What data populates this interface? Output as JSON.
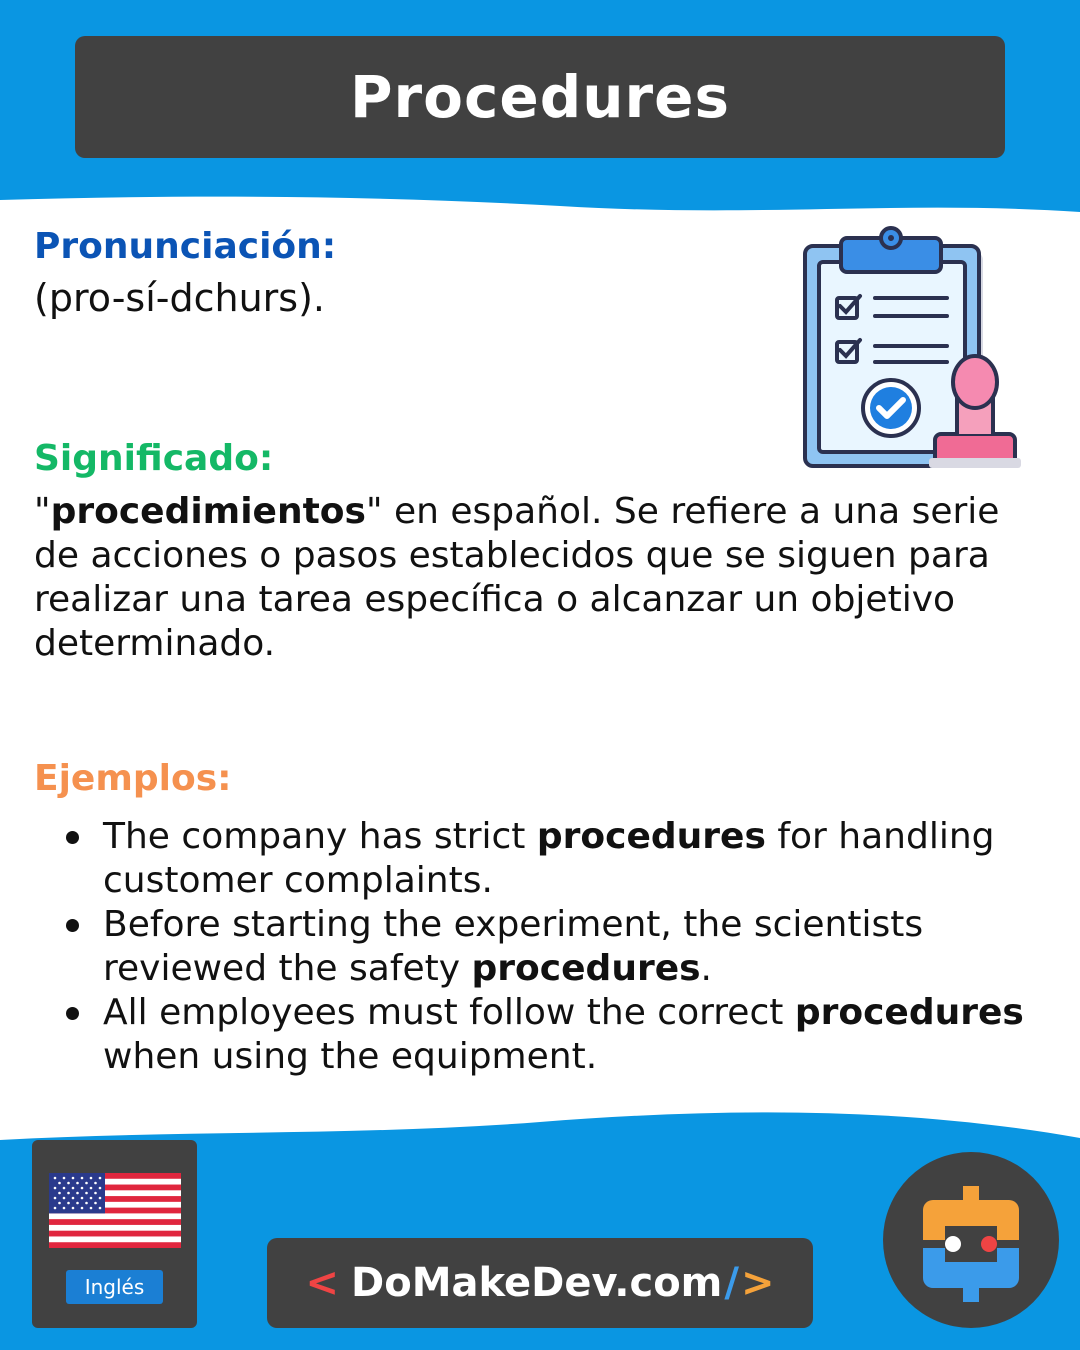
{
  "title": "Procedures",
  "pronunciation": {
    "label": "Pronunciación:",
    "text": "(pro-sí-dchurs)."
  },
  "meaning": {
    "label": "Significado:",
    "quote_open": "\"",
    "bold_word": "procedimientos",
    "quote_close": "\"",
    "rest": " en español. Se refiere a una serie de acciones o pasos establecidos que se siguen para realizar una tarea específica o alcanzar un objetivo determinado."
  },
  "examples": {
    "label": "Ejemplos:",
    "items": [
      {
        "before": "The company has strict ",
        "bold": "procedures",
        "after": " for handling customer complaints."
      },
      {
        "before": "Before starting the experiment, the scientists reviewed the safety ",
        "bold": "procedures",
        "after": "."
      },
      {
        "before": "All employees must follow the correct ",
        "bold": "procedures",
        "after": " when using the equipment."
      }
    ]
  },
  "language_badge": "Inglés",
  "site": {
    "lt": "<",
    "name": "DoMakeDev.com",
    "slash": "/",
    "gt": ">"
  },
  "icons": {
    "illustration": "clipboard-checklist-stamp-icon",
    "flag": "us-flag-icon",
    "logo": "domakedev-logo-icon"
  },
  "colors": {
    "background_blue": "#0a96e2",
    "dark_card": "#414141",
    "pronunciation_label": "#0b54b5",
    "meaning_label": "#14b866",
    "examples_label": "#f5914f"
  }
}
